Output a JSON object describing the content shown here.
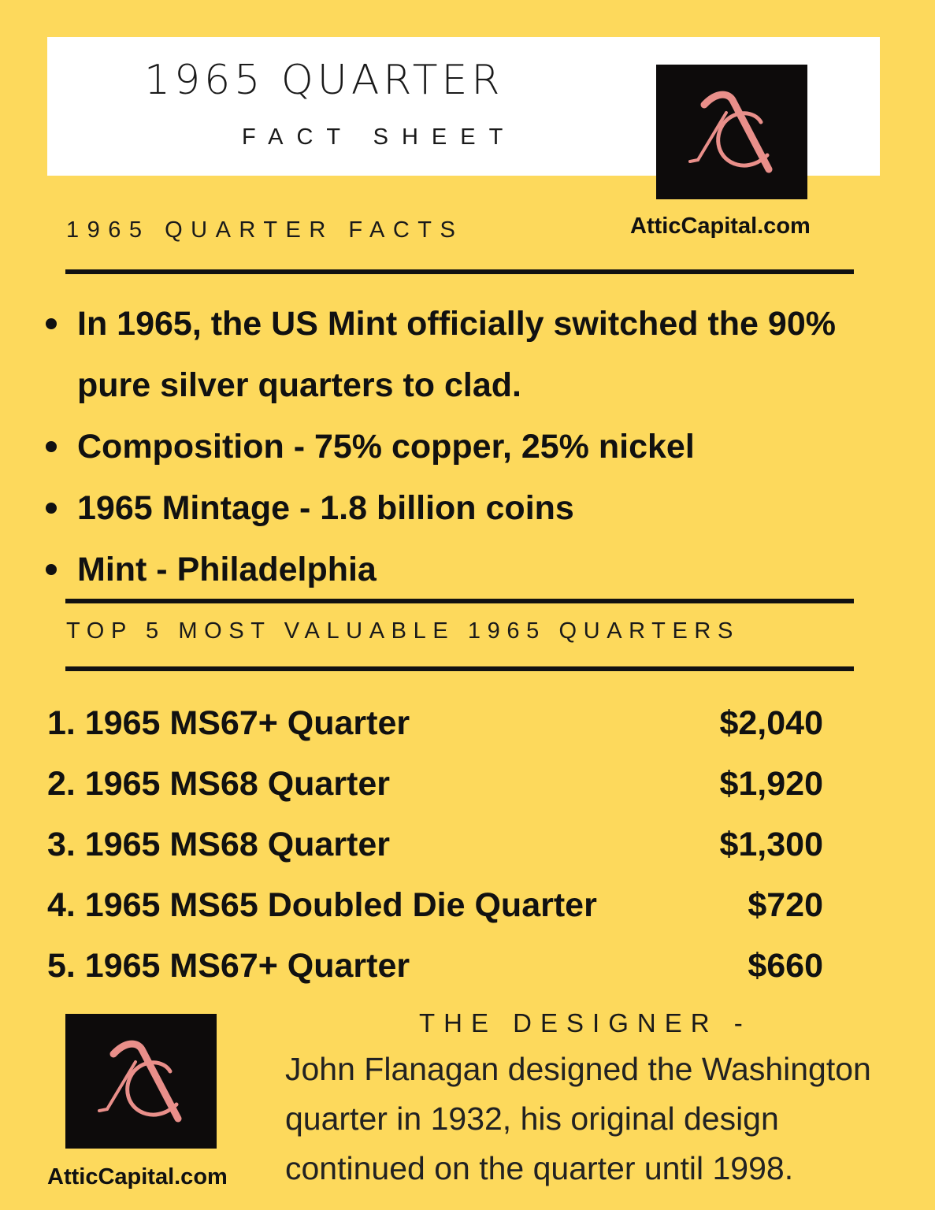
{
  "header": {
    "title": "1965 QUARTER",
    "subtitle": "FACT SHEET"
  },
  "brand": {
    "logo_icon": "ac-monogram-icon",
    "logo_bg": "#0d0b0b",
    "logo_color": "#e98f8a",
    "site_top": "AtticCapital.com",
    "site_bottom": "AtticCapital.com"
  },
  "facts": {
    "heading": "1965 QUARTER FACTS",
    "items": [
      "In 1965, the US Mint officially switched the 90% pure silver quarters to clad.",
      "Composition - 75% copper, 25% nickel",
      "1965 Mintage - 1.8 billion coins",
      "Mint - Philadelphia"
    ]
  },
  "top5": {
    "heading": "TOP 5 MOST VALUABLE 1965 QUARTERS",
    "items": [
      {
        "label": "1. 1965 MS67+ Quarter",
        "value": "$2,040"
      },
      {
        "label": "2. 1965 MS68 Quarter",
        "value": "$1,920"
      },
      {
        "label": "3. 1965 MS68 Quarter",
        "value": "$1,300"
      },
      {
        "label": "4. 1965 MS65 Doubled Die Quarter",
        "value": "$720"
      },
      {
        "label": "5. 1965 MS67+ Quarter",
        "value": "$660"
      }
    ]
  },
  "designer": {
    "heading": "THE DESIGNER -",
    "text": "John Flanagan designed the Washington quarter in 1932, his original design continued on the quarter until 1998."
  },
  "colors": {
    "background": "#fdd95c",
    "card": "#ffffff",
    "text": "#111111"
  }
}
